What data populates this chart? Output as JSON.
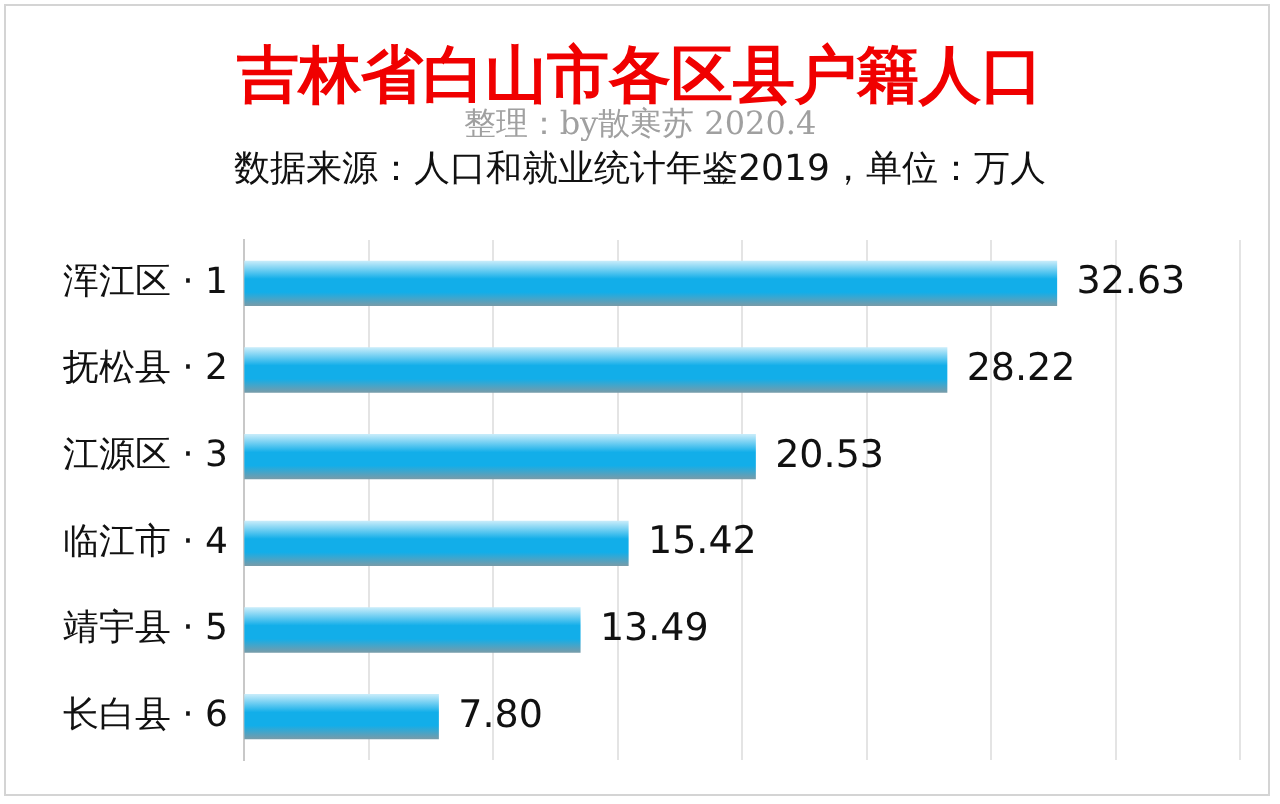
{
  "chart_data": {
    "type": "bar",
    "orientation": "horizontal",
    "title": "吉林省白山市各区县户籍人口",
    "subtitle": "整理：by散寒苏 2020.4",
    "annotations": [
      "数据来源：人口和就业统计年鉴2019，单位：万人"
    ],
    "categories": [
      "浑江区 · 1",
      "抚松县 · 2",
      "江源区 · 3",
      "临江市 · 4",
      "靖宇县 · 5",
      "长白县 · 6"
    ],
    "values": [
      32.63,
      28.22,
      20.53,
      15.42,
      13.49,
      7.8
    ],
    "value_labels": [
      "32.63",
      "28.22",
      "20.53",
      "15.42",
      "13.49",
      "7.80"
    ],
    "color": "#12aee9",
    "xlim": [
      0,
      40
    ],
    "xticks": [
      {
        "value": 0,
        "label": null
      },
      {
        "value": 5,
        "label": null
      },
      {
        "value": 10,
        "label": null
      },
      {
        "value": 15,
        "label": null
      },
      {
        "value": 20,
        "label": null
      },
      {
        "value": 25,
        "label": null
      },
      {
        "value": 30,
        "label": null
      },
      {
        "value": 35,
        "label": null
      },
      {
        "value": 40,
        "label": null
      }
    ],
    "grid": "x",
    "tick_labels": "y"
  }
}
